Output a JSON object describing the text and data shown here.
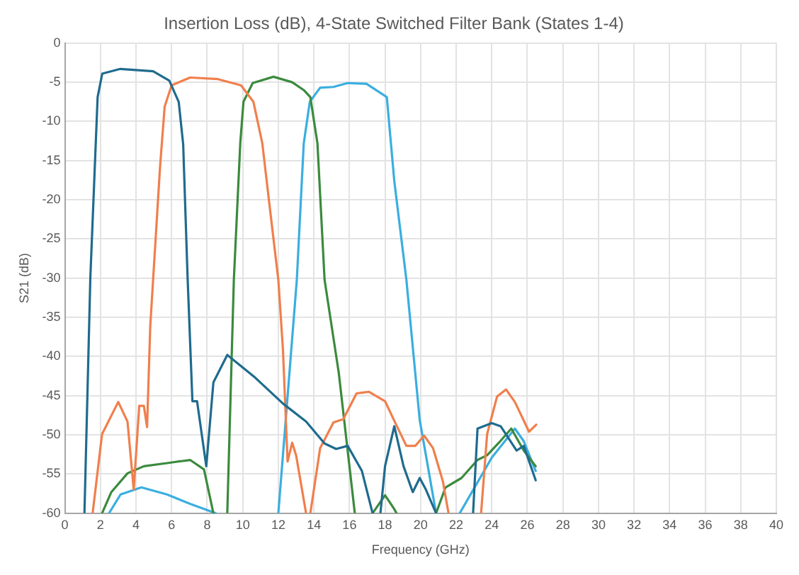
{
  "chart_data": {
    "type": "line",
    "title": "Insertion Loss (dB), 4-State Switched Filter Bank (States 1-4)",
    "xlabel": "Frequency (GHz)",
    "ylabel": "S21 (dB)",
    "xlim": [
      0,
      40
    ],
    "xticks": [
      0,
      2,
      4,
      6,
      8,
      10,
      12,
      14,
      16,
      18,
      20,
      22,
      24,
      26,
      28,
      30,
      32,
      34,
      36,
      38,
      40
    ],
    "ylim": [
      -60,
      0
    ],
    "yticks": [
      -60,
      -55,
      -50,
      -45,
      -40,
      -35,
      -30,
      -25,
      -20,
      -15,
      -10,
      -5,
      0
    ],
    "grid": true,
    "legend": false,
    "marker": "none",
    "line_style": "solid",
    "series": [
      {
        "color": "#1f6b8e",
        "x": [
          1.1,
          1.43,
          1.84,
          2.1,
          3.12,
          4.96,
          5.87,
          6.4,
          6.65,
          6.9,
          7.17,
          7.43,
          7.95,
          8.35,
          9.13,
          10.7,
          12.26,
          13.56,
          14.6,
          15.25,
          15.9,
          16.7,
          17.3,
          17.5,
          17.74,
          18.0,
          18.52,
          19.04,
          19.56,
          19.95,
          20.3,
          20.87,
          21.9,
          22.95,
          23.2,
          24.0,
          24.5,
          25.4,
          25.8,
          26.47
        ],
        "values": [
          -60,
          -30,
          -6.9,
          -3.9,
          -3.3,
          -3.6,
          -4.8,
          -7.5,
          -12.9,
          -30,
          -45.7,
          -45.7,
          -54,
          -43.3,
          -39.8,
          -42.7,
          -46,
          -48.3,
          -51.1,
          -51.8,
          -51.4,
          -54.6,
          -60,
          null,
          -60,
          -54,
          -48.9,
          -54,
          -57.3,
          -55.5,
          -57,
          -60,
          null,
          -60,
          -49.2,
          -48.5,
          -48.9,
          -52,
          -51.4,
          -55.8
        ]
      },
      {
        "color": "#f07f4c",
        "x": [
          1.56,
          2.09,
          3.0,
          3.52,
          3.87,
          4.18,
          4.44,
          4.62,
          4.8,
          4.96,
          5.35,
          5.61,
          6.0,
          7.04,
          8.6,
          9.9,
          10.6,
          11.1,
          11.5,
          12.0,
          12.26,
          12.52,
          12.78,
          13.0,
          13.56,
          13.7,
          13.8,
          14.35,
          15.1,
          15.65,
          16.4,
          17.1,
          18.0,
          18.5,
          19.2,
          19.7,
          20.2,
          20.7,
          21.25,
          21.57,
          22.5,
          23.4,
          23.74,
          24.3,
          24.8,
          25.3,
          26.1,
          26.5
        ],
        "values": [
          -60,
          -49.9,
          -45.8,
          -48.3,
          -57,
          -46.3,
          -46.3,
          -49,
          -36.1,
          -30.2,
          -15.8,
          -8.1,
          -5.4,
          -4.4,
          -4.6,
          -5.4,
          -7.5,
          -12.8,
          -20.6,
          -30.2,
          -39.1,
          -53.4,
          -51,
          -52.6,
          -60,
          null,
          -60,
          -51.7,
          -48.4,
          -48,
          -44.7,
          -44.5,
          -45.7,
          -48.1,
          -51.4,
          -51.4,
          -50.1,
          -51.7,
          -55.9,
          -60,
          null,
          -60,
          -49.9,
          -45.1,
          -44.2,
          -45.8,
          -49.6,
          -48.7
        ]
      },
      {
        "color": "#3b8a3e",
        "x": [
          2.09,
          2.61,
          3.52,
          4.44,
          5.74,
          7.04,
          7.82,
          8.35,
          8.7,
          9.13,
          9.5,
          9.86,
          10.04,
          10.56,
          11.73,
          12.78,
          13.43,
          13.8,
          14.2,
          14.6,
          15.4,
          16.3,
          16.8,
          17.3,
          18.0,
          18.5,
          18.65,
          19.8,
          20.87,
          21.4,
          22.3,
          23.2,
          23.74,
          24.4,
          25.1,
          25.8,
          26.47
        ],
        "values": [
          -60,
          -57.3,
          -54.9,
          -54,
          -53.6,
          -53.2,
          -54.4,
          -60,
          null,
          -60,
          -30.2,
          -12.8,
          -7.5,
          -5.1,
          -4.3,
          -5,
          -6,
          -6.9,
          -12.8,
          -30.2,
          -42.1,
          -60,
          null,
          -60,
          -57.7,
          -59.4,
          -60,
          null,
          -60,
          -56.7,
          -55.5,
          -53.2,
          -52.6,
          -51,
          -49.2,
          -52,
          -54
        ]
      },
      {
        "color": "#3aaee0",
        "x": [
          2.48,
          3.13,
          4.3,
          5.74,
          7.04,
          8.48,
          10.2,
          12.0,
          13.04,
          13.43,
          13.77,
          14.35,
          15.1,
          15.9,
          16.96,
          18.1,
          18.52,
          19.2,
          19.95,
          20.87,
          21.5,
          22.2,
          24.0,
          25.3,
          25.8,
          26.47
        ],
        "values": [
          -60,
          -57.6,
          -56.7,
          -57.6,
          -58.8,
          -60,
          null,
          -60,
          -30.2,
          -12.8,
          -7.5,
          -5.7,
          -5.6,
          -5.1,
          -5.2,
          -6.9,
          -17.6,
          -30.2,
          -48.1,
          -60,
          null,
          -60,
          -52.9,
          -49.2,
          -50.8,
          -54.6
        ]
      }
    ]
  }
}
